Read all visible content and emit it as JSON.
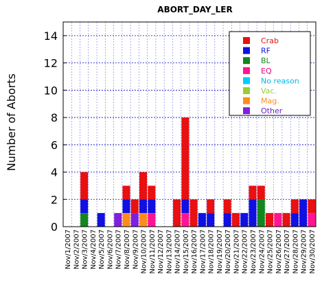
{
  "chart_data": {
    "type": "bar",
    "stacked": true,
    "title": "ABORT_DAY_LER",
    "ylabel": "Number of Aborts",
    "xlabel": "",
    "ylim": [
      0,
      15
    ],
    "yticks": [
      0,
      2,
      4,
      6,
      8,
      10,
      12,
      14
    ],
    "grid": true,
    "legend_position": "top-right",
    "categories": [
      "Nov/1/2007",
      "Nov/2/2007",
      "Nov/3/2007",
      "Nov/4/2007",
      "Nov/5/2007",
      "Nov/6/2007",
      "Nov/7/2007",
      "Nov/8/2007",
      "Nov/9/2007",
      "Nov/10/2007",
      "Nov/11/2007",
      "Nov/12/2007",
      "Nov/13/2007",
      "Nov/14/2007",
      "Nov/15/2007",
      "Nov/16/2007",
      "Nov/17/2007",
      "Nov/18/2007",
      "Nov/19/2007",
      "Nov/20/2007",
      "Nov/21/2007",
      "Nov/22/2007",
      "Nov/23/2007",
      "Nov/24/2007",
      "Nov/25/2007",
      "Nov/26/2007",
      "Nov/27/2007",
      "Nov/28/2007",
      "Nov/29/2007",
      "Nov/30/2007"
    ],
    "series": [
      {
        "name": "Other",
        "color": "#7f1fdf",
        "text_color": "#6a1fbf",
        "values": [
          0,
          0,
          0,
          0,
          0,
          0,
          1,
          0,
          1,
          0,
          0,
          0,
          0,
          0,
          0,
          0,
          0,
          0,
          0,
          0,
          0,
          0,
          0,
          0,
          0,
          0,
          0,
          0,
          0,
          0
        ]
      },
      {
        "name": "Mag.",
        "color": "#ff8c1a",
        "text_color": "#ff8c1a",
        "values": [
          0,
          0,
          0,
          0,
          0,
          0,
          0,
          1,
          0,
          1,
          0,
          0,
          0,
          0,
          0,
          0,
          0,
          0,
          0,
          0,
          0,
          0,
          0,
          0,
          0,
          0,
          0,
          0,
          0,
          0
        ]
      },
      {
        "name": "Vac.",
        "color": "#9acd32",
        "text_color": "#9acd32",
        "values": [
          0,
          0,
          0,
          0,
          0,
          0,
          0,
          0,
          0,
          0,
          0,
          0,
          0,
          0,
          0,
          0,
          0,
          0,
          0,
          0,
          0,
          0,
          0,
          0,
          0,
          0,
          0,
          0,
          0,
          0
        ]
      },
      {
        "name": "No reason",
        "color": "#00ccff",
        "text_color": "#00b8e6",
        "values": [
          0,
          0,
          0,
          0,
          0,
          0,
          0,
          0,
          0,
          0,
          0,
          0,
          0,
          0,
          0,
          0,
          0,
          0,
          0,
          0,
          0,
          0,
          0,
          0,
          0,
          0,
          0,
          0,
          0,
          0
        ]
      },
      {
        "name": "EQ",
        "color": "#ff1493",
        "text_color": "#e6007e",
        "values": [
          0,
          0,
          0,
          0,
          0,
          0,
          0,
          0,
          0,
          0,
          1,
          0,
          0,
          0,
          1,
          0,
          0,
          0,
          0,
          0,
          0,
          0,
          0,
          0,
          0,
          1,
          0,
          0,
          0,
          1
        ]
      },
      {
        "name": "BL",
        "color": "#13861d",
        "text_color": "#13861d",
        "values": [
          0,
          0,
          1,
          0,
          0,
          0,
          0,
          0,
          0,
          0,
          0,
          0,
          0,
          0,
          0,
          0,
          0,
          0,
          0,
          0,
          0,
          0,
          0,
          2,
          0,
          0,
          0,
          0,
          0,
          0
        ]
      },
      {
        "name": "RF",
        "color": "#1010e0",
        "text_color": "#1010e0",
        "values": [
          0,
          0,
          1,
          0,
          1,
          0,
          0,
          1,
          0,
          1,
          1,
          0,
          0,
          0,
          1,
          0,
          1,
          1,
          0,
          1,
          0,
          1,
          2,
          0,
          0,
          0,
          0,
          1,
          2,
          0
        ]
      },
      {
        "name": "Crab",
        "color": "#e81010",
        "text_color": "#e81010",
        "values": [
          0,
          0,
          2,
          0,
          0,
          0,
          0,
          1,
          1,
          2,
          1,
          0,
          0,
          2,
          6,
          2,
          0,
          1,
          0,
          1,
          1,
          0,
          1,
          1,
          1,
          0,
          1,
          1,
          0,
          1
        ]
      }
    ],
    "legend_order": [
      "Crab",
      "RF",
      "BL",
      "EQ",
      "No reason",
      "Vac.",
      "Mag.",
      "Other"
    ]
  }
}
